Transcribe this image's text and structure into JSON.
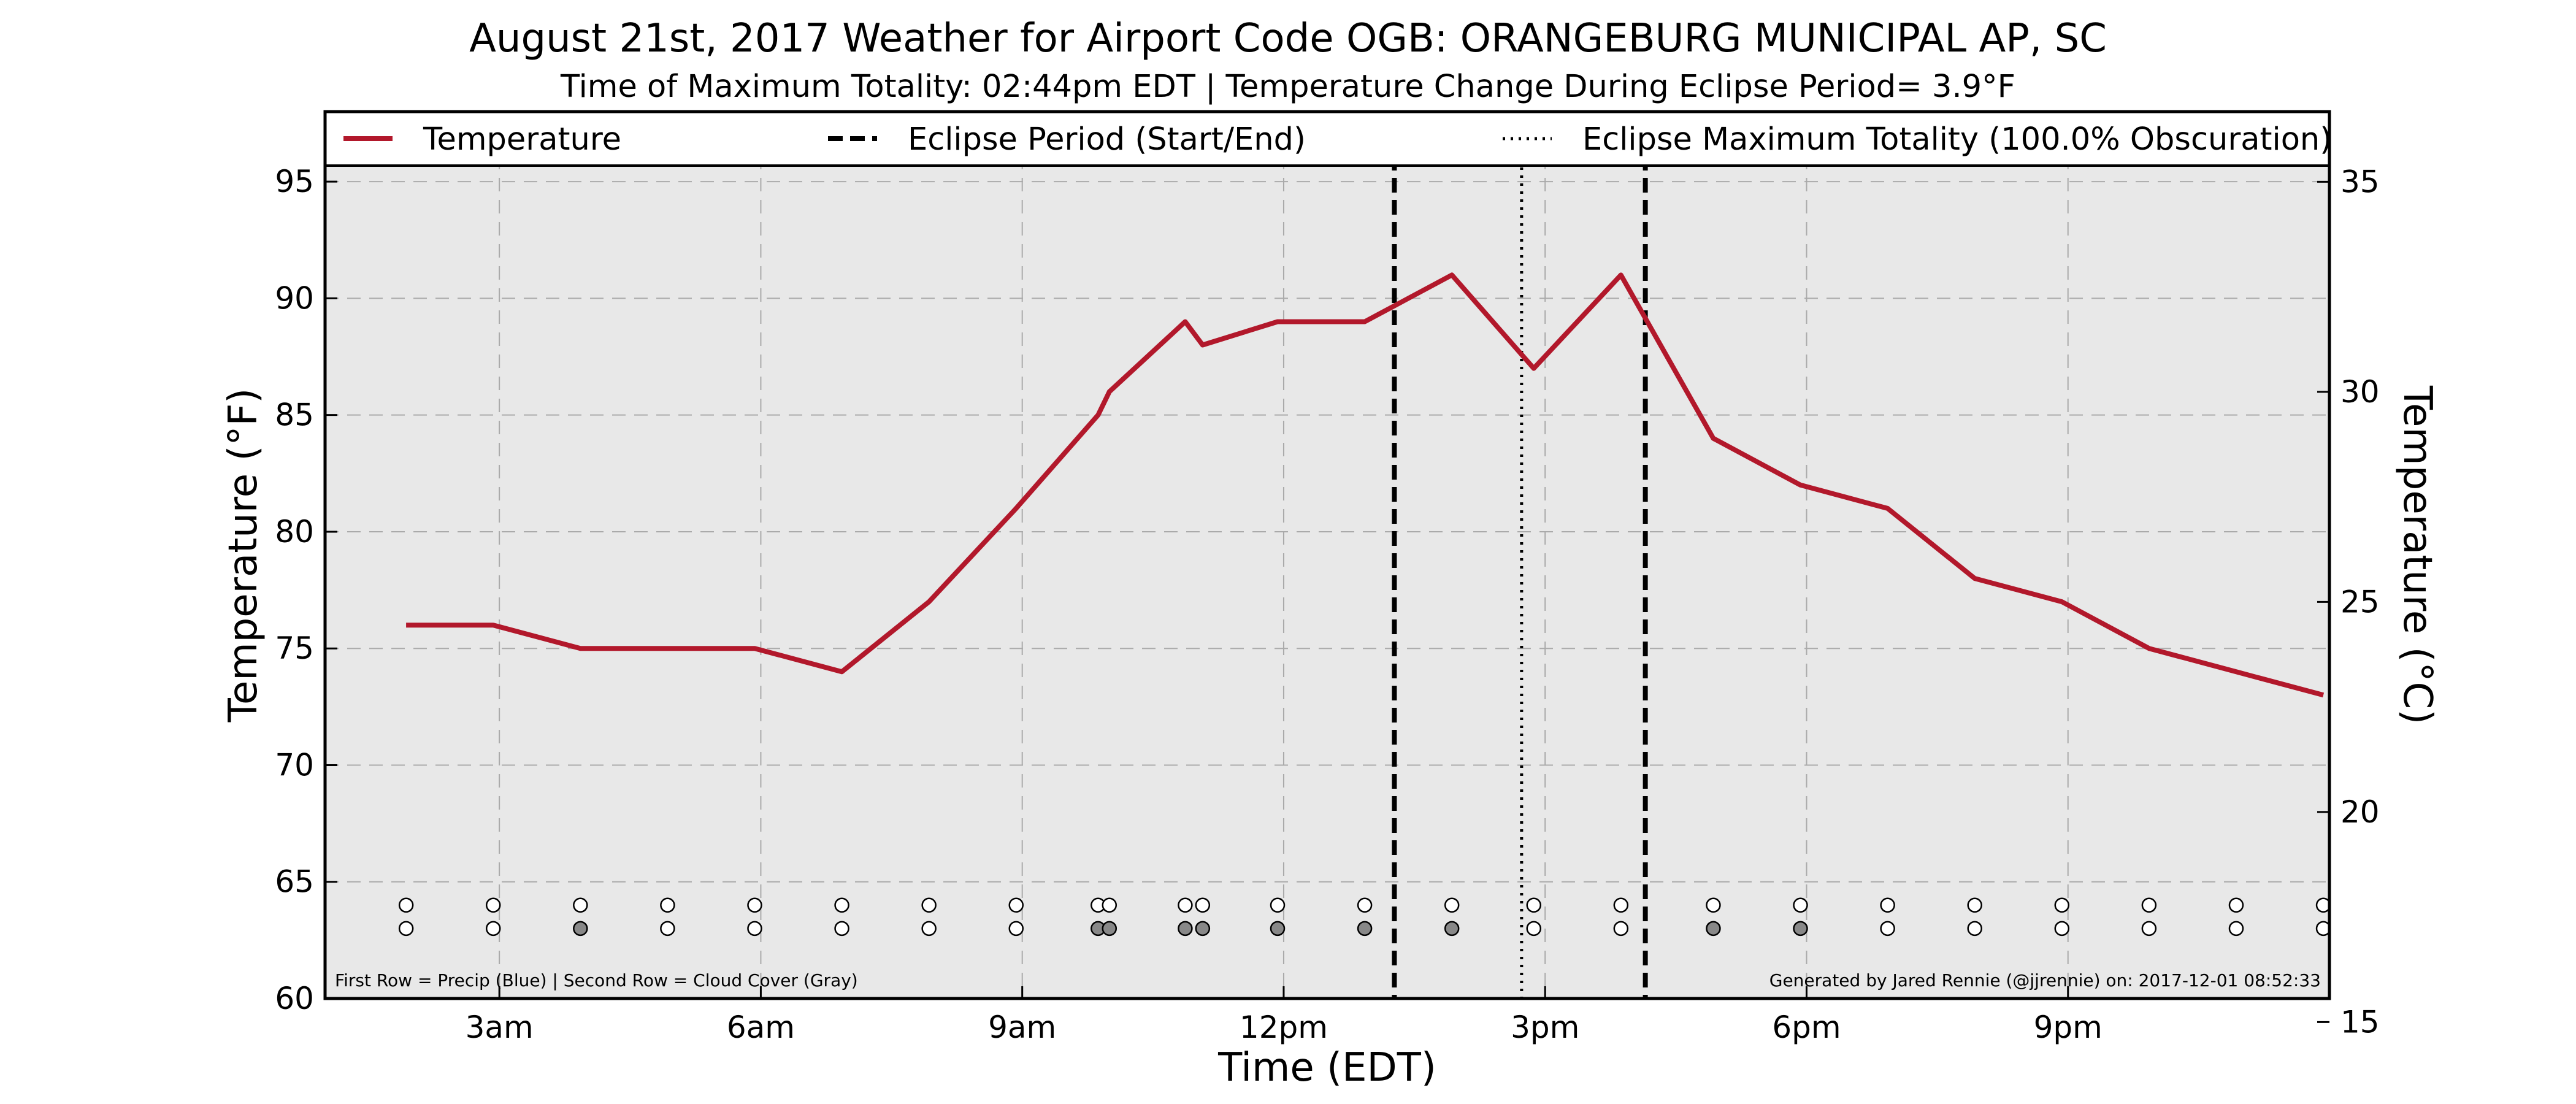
{
  "chart_data": {
    "type": "line",
    "title": "August 21st, 2017 Weather for Airport Code OGB: ORANGEBURG MUNICIPAL AP, SC",
    "subtitle": "Time of Maximum Totality: 02:44pm EDT | Temperature Change During Eclipse Period= 3.9°F",
    "xlabel": "Time (EDT)",
    "ylabel": "Temperature (°F)",
    "ylabel_right": "Temperature (°C)",
    "xlim": [
      1.0,
      24.0
    ],
    "ylim": [
      60,
      98
    ],
    "ylim_right": [
      15.56,
      36.67
    ],
    "grid": true,
    "x_ticks": [
      {
        "x": 3,
        "label": "3am"
      },
      {
        "x": 6,
        "label": "6am"
      },
      {
        "x": 9,
        "label": "9am"
      },
      {
        "x": 12,
        "label": "12pm"
      },
      {
        "x": 15,
        "label": "3pm"
      },
      {
        "x": 18,
        "label": "6pm"
      },
      {
        "x": 21,
        "label": "9pm"
      }
    ],
    "y_ticks": [
      60,
      65,
      70,
      75,
      80,
      85,
      90,
      95
    ],
    "y_ticks_right": [
      15,
      20,
      25,
      30,
      35
    ],
    "legend": {
      "placement": "top",
      "entries": [
        {
          "label": "Temperature",
          "style": "solid",
          "color": "#b2182b"
        },
        {
          "label": "Eclipse Period (Start/End)",
          "style": "dashed",
          "color": "#000000"
        },
        {
          "label": "Eclipse Maximum Totality (100.0% Obscuration)",
          "style": "dotted",
          "color": "#000000"
        }
      ]
    },
    "series": [
      {
        "name": "Temperature",
        "color": "#b2182b",
        "x": [
          1.93,
          2.93,
          3.93,
          4.93,
          5.93,
          6.93,
          7.93,
          8.93,
          9.87,
          10.0,
          10.87,
          11.07,
          11.93,
          12.93,
          13.93,
          14.87,
          15.87,
          16.93,
          17.93,
          18.93,
          19.93,
          20.93,
          21.93,
          22.93,
          23.93
        ],
        "y": [
          76,
          76,
          75,
          75,
          75,
          74,
          77,
          81,
          85,
          86,
          89,
          88,
          89,
          89,
          91,
          87,
          91,
          84,
          82,
          81,
          78,
          77,
          75,
          74,
          73
        ]
      }
    ],
    "eclipse_start_x": 13.27,
    "eclipse_end_x": 16.15,
    "eclipse_max_x": 14.73,
    "observations": {
      "x": [
        1.93,
        2.93,
        3.93,
        4.93,
        5.93,
        6.93,
        7.93,
        8.93,
        9.87,
        10.0,
        10.87,
        11.07,
        11.93,
        12.93,
        13.93,
        14.87,
        15.87,
        16.93,
        17.93,
        18.93,
        19.93,
        20.93,
        21.93,
        22.93,
        23.93
      ],
      "precip": [
        "none",
        "none",
        "none",
        "none",
        "none",
        "none",
        "none",
        "none",
        "none",
        "none",
        "none",
        "none",
        "none",
        "none",
        "none",
        "none",
        "none",
        "none",
        "none",
        "none",
        "none",
        "none",
        "none",
        "none",
        "none"
      ],
      "cloud_cover": [
        "clear",
        "clear",
        "cloudy",
        "clear",
        "clear",
        "clear",
        "clear",
        "clear",
        "cloudy",
        "cloudy",
        "cloudy",
        "cloudy",
        "cloudy",
        "cloudy",
        "cloudy",
        "clear",
        "clear",
        "cloudy",
        "cloudy",
        "clear",
        "clear",
        "clear",
        "clear",
        "clear",
        "clear"
      ],
      "precip_y": 64,
      "cloud_y": 63
    },
    "colors": {
      "plot_background": "#e8e8e8",
      "grid": "#aaaaaa",
      "open_marker": "#ffffff",
      "cloudy_marker": "#888888"
    }
  },
  "footnote_left": "First Row = Precip (Blue) | Second Row = Cloud Cover (Gray)",
  "footnote_right": "Generated by Jared Rennie (@jjrennie) on: 2017-12-01 08:52:33"
}
